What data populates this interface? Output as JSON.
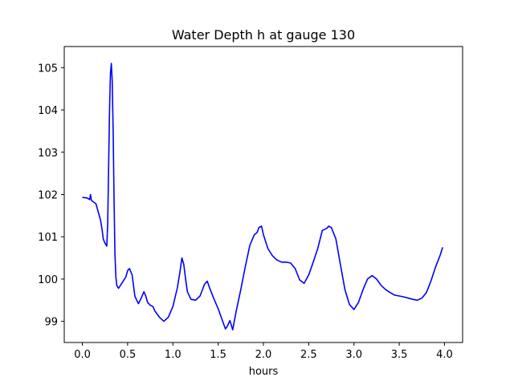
{
  "chart_data": {
    "type": "line",
    "title": "Water Depth h at gauge 130",
    "xlabel": "hours",
    "ylabel": "",
    "xlim": [
      -0.2,
      4.2
    ],
    "ylim": [
      98.5,
      105.5
    ],
    "xticks": [
      0.0,
      0.5,
      1.0,
      1.5,
      2.0,
      2.5,
      3.0,
      3.5,
      4.0
    ],
    "xtick_labels": [
      "0.0",
      "0.5",
      "1.0",
      "1.5",
      "2.0",
      "2.5",
      "3.0",
      "3.5",
      "4.0"
    ],
    "yticks": [
      99,
      100,
      101,
      102,
      103,
      104,
      105
    ],
    "ytick_labels": [
      "99",
      "100",
      "101",
      "102",
      "103",
      "104",
      "105"
    ],
    "grid": false,
    "series": [
      {
        "name": "",
        "color": "#0000ff",
        "x": [
          0.0,
          0.05,
          0.08,
          0.09,
          0.1,
          0.15,
          0.2,
          0.22,
          0.23,
          0.25,
          0.27,
          0.28,
          0.29,
          0.3,
          0.31,
          0.32,
          0.33,
          0.34,
          0.35,
          0.36,
          0.37,
          0.38,
          0.4,
          0.45,
          0.48,
          0.5,
          0.52,
          0.55,
          0.58,
          0.6,
          0.62,
          0.65,
          0.68,
          0.7,
          0.72,
          0.75,
          0.78,
          0.8,
          0.85,
          0.9,
          0.95,
          1.0,
          1.05,
          1.08,
          1.1,
          1.12,
          1.14,
          1.16,
          1.2,
          1.25,
          1.3,
          1.35,
          1.38,
          1.4,
          1.45,
          1.5,
          1.55,
          1.58,
          1.6,
          1.63,
          1.66,
          1.7,
          1.75,
          1.8,
          1.85,
          1.9,
          1.93,
          1.95,
          1.98,
          2.0,
          2.05,
          2.1,
          2.15,
          2.2,
          2.25,
          2.3,
          2.35,
          2.4,
          2.45,
          2.5,
          2.55,
          2.6,
          2.65,
          2.7,
          2.72,
          2.75,
          2.8,
          2.85,
          2.9,
          2.95,
          3.0,
          3.05,
          3.1,
          3.15,
          3.2,
          3.25,
          3.3,
          3.35,
          3.4,
          3.45,
          3.5,
          3.55,
          3.6,
          3.65,
          3.7,
          3.75,
          3.8,
          3.85,
          3.9,
          3.95,
          3.98
        ],
        "y": [
          101.93,
          101.92,
          101.88,
          102.0,
          101.86,
          101.78,
          101.4,
          101.15,
          100.95,
          100.85,
          100.78,
          101.3,
          102.6,
          104.0,
          104.85,
          105.1,
          104.7,
          103.5,
          101.9,
          100.6,
          100.05,
          99.85,
          99.78,
          99.95,
          100.05,
          100.2,
          100.25,
          100.1,
          99.6,
          99.5,
          99.42,
          99.55,
          99.7,
          99.6,
          99.45,
          99.38,
          99.35,
          99.25,
          99.1,
          99.0,
          99.1,
          99.35,
          99.8,
          100.2,
          100.5,
          100.35,
          100.0,
          99.7,
          99.52,
          99.5,
          99.6,
          99.88,
          99.95,
          99.82,
          99.55,
          99.3,
          99.0,
          98.82,
          98.88,
          99.02,
          98.8,
          99.25,
          99.75,
          100.3,
          100.8,
          101.05,
          101.1,
          101.22,
          101.25,
          101.05,
          100.72,
          100.55,
          100.45,
          100.4,
          100.4,
          100.38,
          100.25,
          99.98,
          99.9,
          100.1,
          100.4,
          100.72,
          101.15,
          101.2,
          101.25,
          101.22,
          100.95,
          100.35,
          99.75,
          99.4,
          99.28,
          99.45,
          99.75,
          100.0,
          100.08,
          100.0,
          99.85,
          99.75,
          99.68,
          99.62,
          99.6,
          99.58,
          99.55,
          99.52,
          99.5,
          99.55,
          99.68,
          99.95,
          100.28,
          100.55,
          100.75
        ]
      }
    ]
  }
}
